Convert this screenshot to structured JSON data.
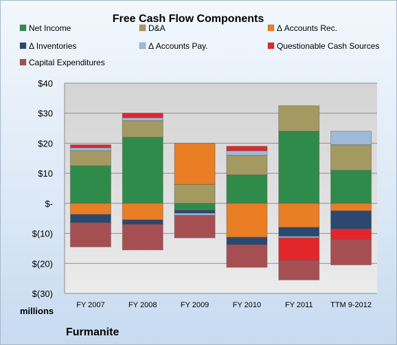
{
  "chart_data": {
    "type": "bar",
    "stacked": true,
    "title": "Free Cash Flow Components",
    "ylabel": "millions",
    "footer": "Furmanite",
    "ylim": [
      -30,
      40
    ],
    "yticks": [
      40,
      30,
      20,
      10,
      0,
      -10,
      -20,
      -30
    ],
    "ytick_labels": [
      "$40",
      "$30",
      "$20",
      "$10",
      "$-",
      "$(10)",
      "$(20)",
      "$(30)"
    ],
    "grid": true,
    "legend_position": "top",
    "categories": [
      "FY 2007",
      "FY 2008",
      "FY 2009",
      "FY 2010",
      "FY 2011",
      "TTM 9-2012"
    ],
    "series": [
      {
        "name": "Net Income",
        "color": "#2e8b4a",
        "values": [
          12.5,
          22,
          -2.3,
          9.5,
          24,
          11
        ]
      },
      {
        "name": "D&A",
        "color": "#a49a61",
        "values": [
          5,
          5.5,
          6.3,
          6.5,
          8.5,
          8.5
        ]
      },
      {
        "name": "Δ Accounts Rec.",
        "color": "#e97e24",
        "values": [
          -3.7,
          -5.5,
          13.7,
          -11.3,
          -8,
          -2.5
        ]
      },
      {
        "name": "Δ Inventories",
        "color": "#2a4870",
        "values": [
          -2.8,
          -1.5,
          -1,
          -2.5,
          -3,
          -6
        ]
      },
      {
        "name": "Δ Accounts Pay.",
        "color": "#9fbad8",
        "values": [
          1,
          1,
          -0.7,
          1.5,
          -0.5,
          4.5
        ]
      },
      {
        "name": "Questionable Cash Sources",
        "color": "#e2262b",
        "values": [
          1,
          1.5,
          0,
          1.5,
          -7.5,
          -3.5
        ]
      },
      {
        "name": "Capital Expenditures",
        "color": "#a64f53",
        "values": [
          -8,
          -8.5,
          -7.5,
          -7.5,
          -6.5,
          -8.5
        ]
      }
    ]
  }
}
